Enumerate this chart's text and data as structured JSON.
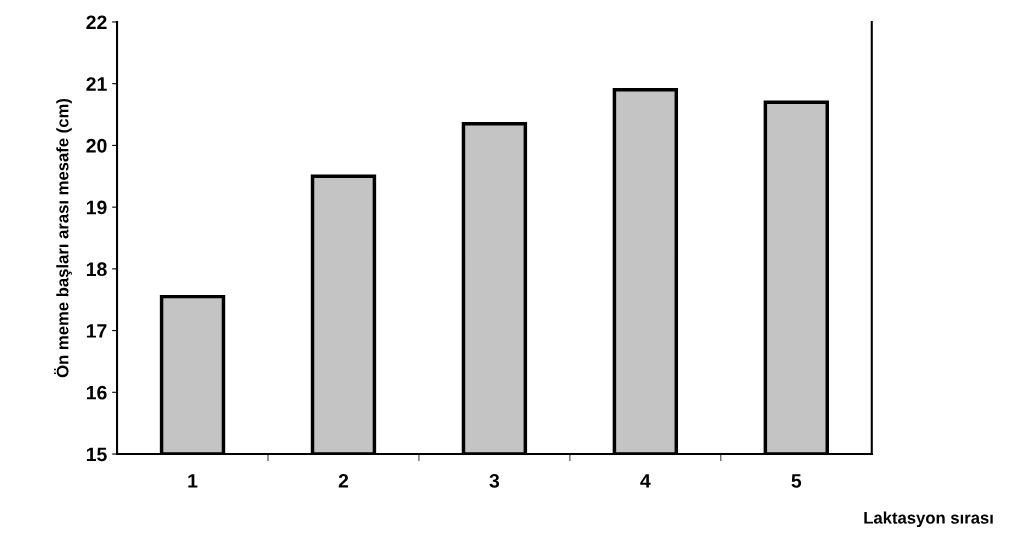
{
  "chart_data": {
    "type": "bar",
    "xlabel": "Laktasyon sırası",
    "ylabel": "Ön meme başları arası mesafe (cm)",
    "categories": [
      "1",
      "2",
      "3",
      "4",
      "5"
    ],
    "values": [
      17.55,
      19.5,
      20.35,
      20.9,
      20.7
    ],
    "color": "#c4c4c4",
    "ylim": [
      15,
      22
    ],
    "yticks": [
      15,
      16,
      17,
      18,
      19,
      20,
      21,
      22
    ],
    "grid": false
  }
}
